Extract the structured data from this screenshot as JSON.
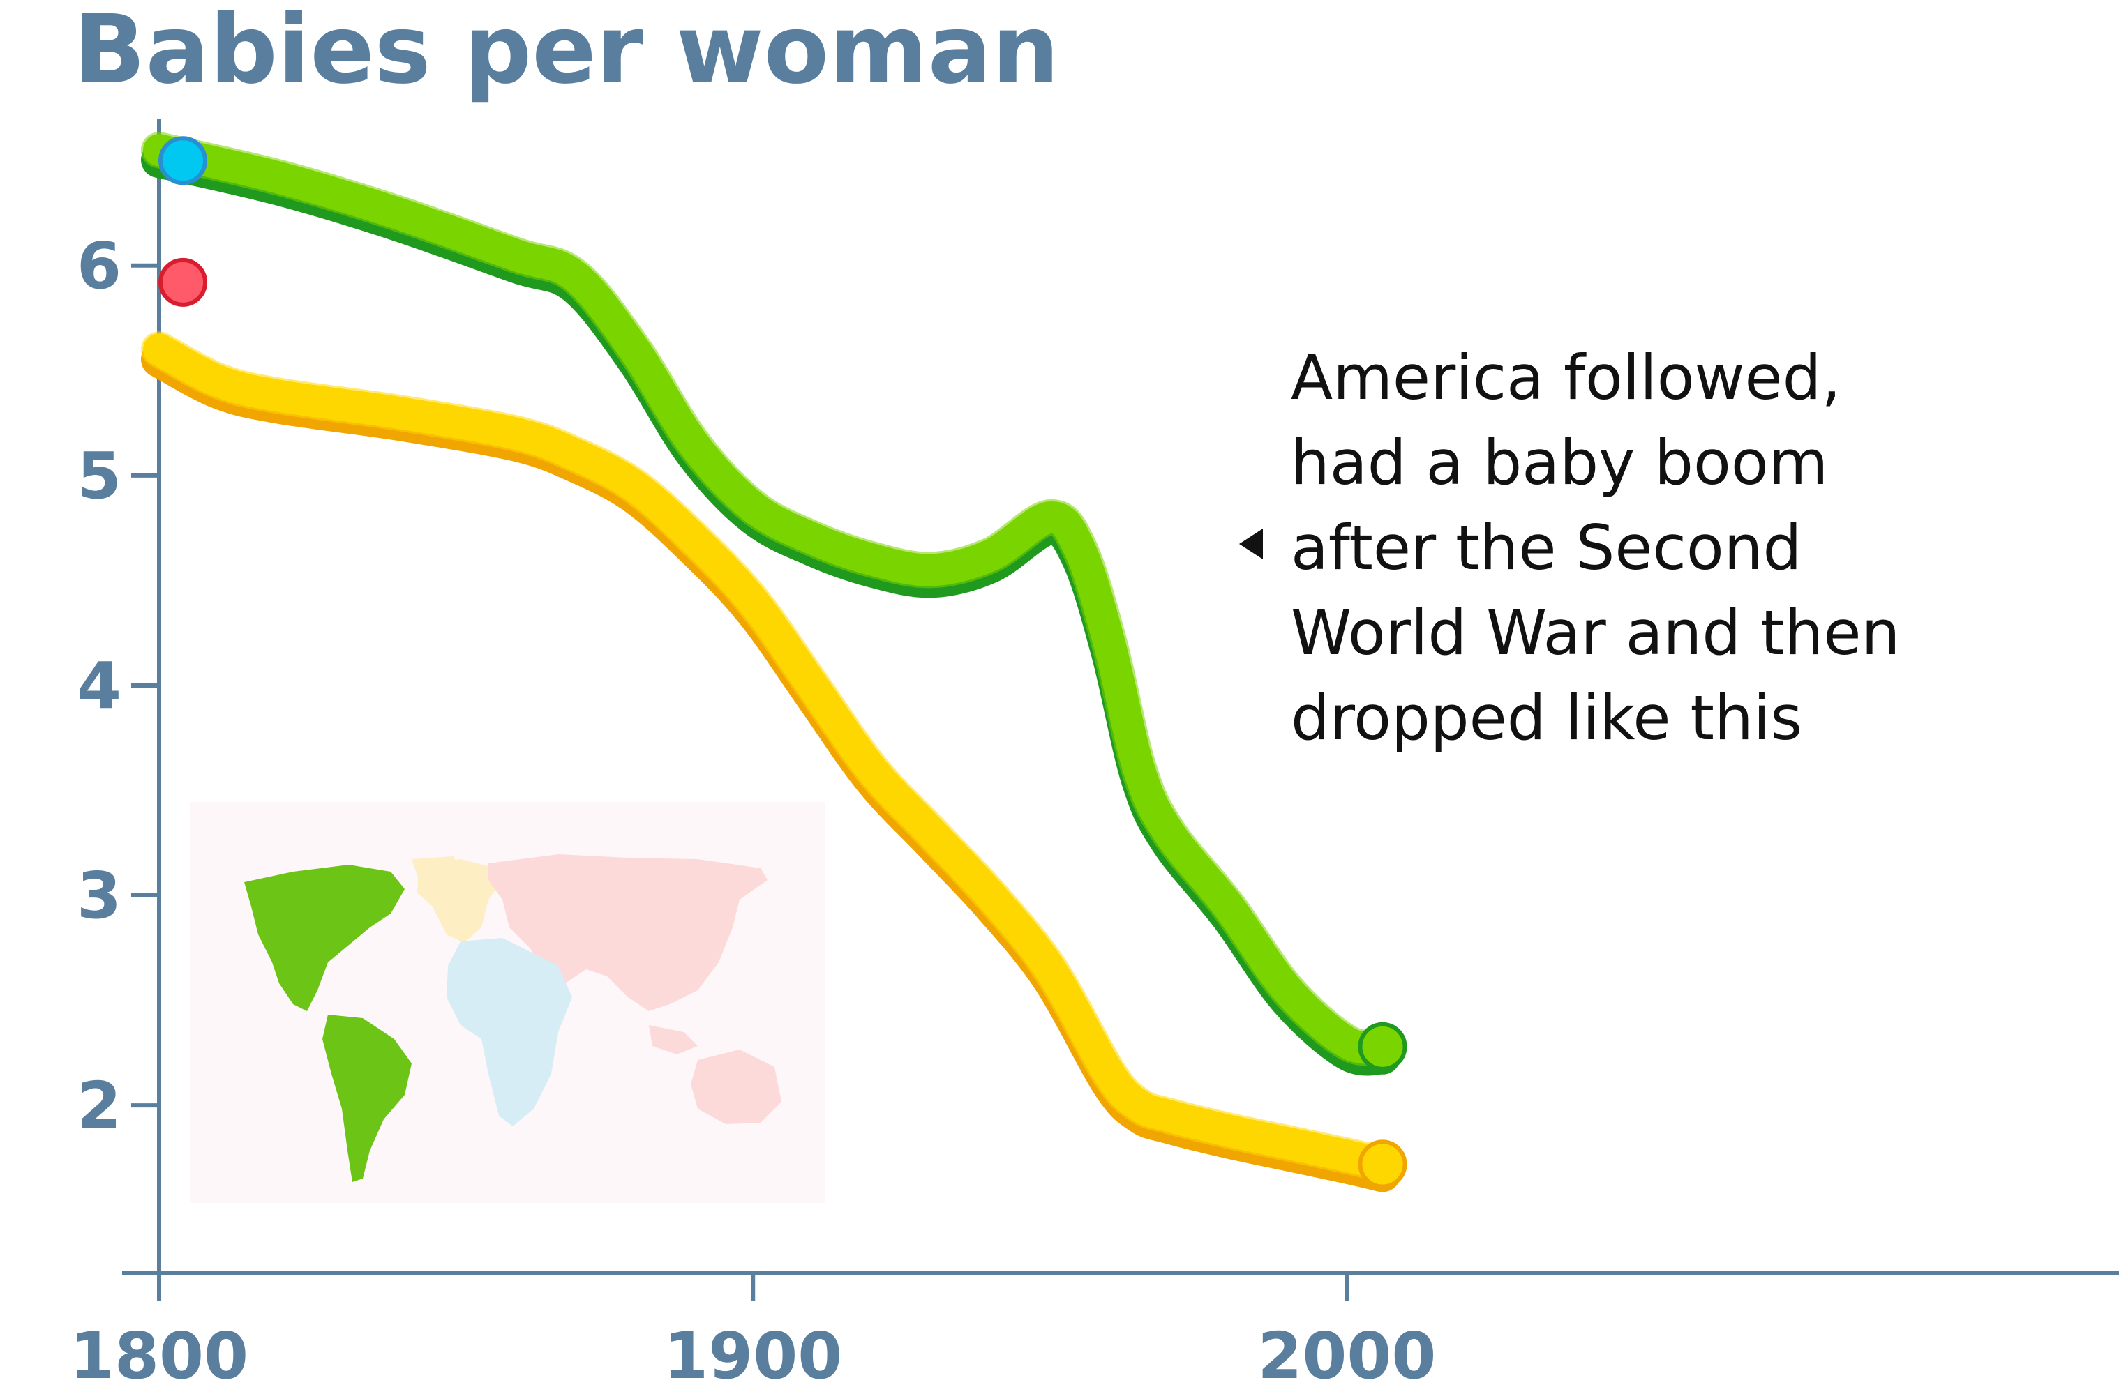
{
  "chart_data": {
    "type": "line",
    "title": "Babies per woman",
    "xlabel": "",
    "ylabel": "",
    "xlim": [
      1800,
      2130
    ],
    "ylim": [
      1.2,
      6.7
    ],
    "x_ticks": [
      1800,
      1900,
      2000
    ],
    "y_ticks": [
      2,
      3,
      4,
      5,
      6
    ],
    "grid": false,
    "series": [
      {
        "color": "#7ad400",
        "edge_color": "#1f9a1f",
        "x": [
          1800,
          1820,
          1840,
          1860,
          1870,
          1880,
          1890,
          1900,
          1910,
          1920,
          1930,
          1940,
          1950,
          1955,
          1960,
          1965,
          1970,
          1980,
          1990,
          2000,
          2006
        ],
        "y": [
          6.55,
          6.42,
          6.25,
          6.05,
          5.95,
          5.6,
          5.15,
          4.85,
          4.7,
          4.6,
          4.55,
          4.62,
          4.8,
          4.65,
          4.2,
          3.6,
          3.3,
          2.95,
          2.55,
          2.3,
          2.28
        ]
      },
      {
        "color": "#ffd700",
        "edge_color": "#f0a500",
        "x": [
          1800,
          1810,
          1820,
          1840,
          1860,
          1870,
          1880,
          1890,
          1900,
          1910,
          1920,
          1930,
          1940,
          1950,
          1960,
          1965,
          1970,
          1980,
          1990,
          2000,
          2006
        ],
        "y": [
          5.6,
          5.45,
          5.38,
          5.3,
          5.2,
          5.1,
          4.95,
          4.7,
          4.4,
          4.0,
          3.6,
          3.3,
          3.0,
          2.65,
          2.15,
          2.0,
          1.95,
          1.88,
          1.82,
          1.76,
          1.72
        ]
      }
    ],
    "start_markers": [
      {
        "x": 1804,
        "y": 6.5,
        "color": "#00c8f0",
        "edge_color": "#2a8fd0"
      },
      {
        "x": 1804,
        "y": 5.92,
        "color": "#ff5a6a",
        "edge_color": "#d81e2e"
      }
    ],
    "annotation": {
      "lines": [
        "America followed,",
        "had a baby boom",
        "after the Second",
        "World War and then",
        "dropped like this"
      ]
    },
    "map_legend": {
      "highlight": "#6cc417",
      "europe": "#fdeec4",
      "africa": "#d6edf6",
      "asia": "#fddada"
    },
    "axis_color": "#5a7f9e"
  }
}
